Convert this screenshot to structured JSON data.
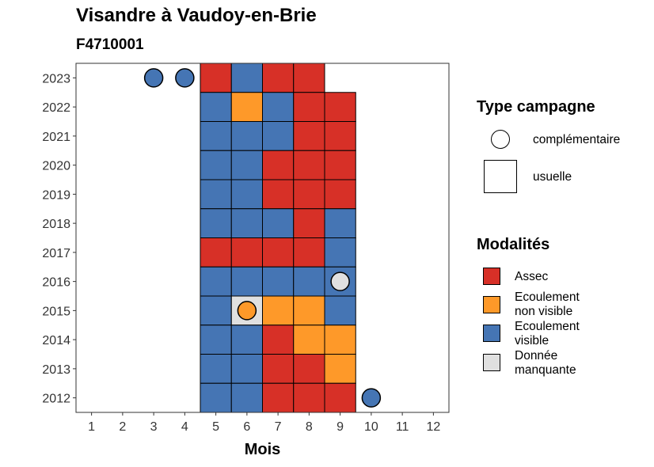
{
  "title": "Visandre à Vaudoy-en-Brie",
  "subtitle": "F4710001",
  "colors": {
    "Assec": "#d73027",
    "Ecoulement non visible": "#fe9929",
    "Ecoulement visible": "#4575b4",
    "Donnée manquante": "#e0e0e0"
  },
  "chart_data": {
    "type": "heatmap",
    "xlabel": "Mois",
    "ylabel": "",
    "x_ticks": [
      "1",
      "2",
      "3",
      "4",
      "5",
      "6",
      "7",
      "8",
      "9",
      "10",
      "11",
      "12"
    ],
    "y_ticks": [
      "2012",
      "2013",
      "2014",
      "2015",
      "2016",
      "2017",
      "2018",
      "2019",
      "2020",
      "2021",
      "2022",
      "2023"
    ],
    "xlim": [
      0.5,
      12.5
    ],
    "ylim": [
      2011.5,
      2023.5
    ],
    "usuelle": [
      {
        "year": 2023,
        "month": 5,
        "value": "Assec"
      },
      {
        "year": 2023,
        "month": 6,
        "value": "Ecoulement visible"
      },
      {
        "year": 2023,
        "month": 7,
        "value": "Assec"
      },
      {
        "year": 2023,
        "month": 8,
        "value": "Assec"
      },
      {
        "year": 2022,
        "month": 5,
        "value": "Ecoulement visible"
      },
      {
        "year": 2022,
        "month": 6,
        "value": "Ecoulement non visible"
      },
      {
        "year": 2022,
        "month": 7,
        "value": "Ecoulement visible"
      },
      {
        "year": 2022,
        "month": 8,
        "value": "Assec"
      },
      {
        "year": 2022,
        "month": 9,
        "value": "Assec"
      },
      {
        "year": 2021,
        "month": 5,
        "value": "Ecoulement visible"
      },
      {
        "year": 2021,
        "month": 6,
        "value": "Ecoulement visible"
      },
      {
        "year": 2021,
        "month": 7,
        "value": "Ecoulement visible"
      },
      {
        "year": 2021,
        "month": 8,
        "value": "Assec"
      },
      {
        "year": 2021,
        "month": 9,
        "value": "Assec"
      },
      {
        "year": 2020,
        "month": 5,
        "value": "Ecoulement visible"
      },
      {
        "year": 2020,
        "month": 6,
        "value": "Ecoulement visible"
      },
      {
        "year": 2020,
        "month": 7,
        "value": "Assec"
      },
      {
        "year": 2020,
        "month": 8,
        "value": "Assec"
      },
      {
        "year": 2020,
        "month": 9,
        "value": "Assec"
      },
      {
        "year": 2019,
        "month": 5,
        "value": "Ecoulement visible"
      },
      {
        "year": 2019,
        "month": 6,
        "value": "Ecoulement visible"
      },
      {
        "year": 2019,
        "month": 7,
        "value": "Assec"
      },
      {
        "year": 2019,
        "month": 8,
        "value": "Assec"
      },
      {
        "year": 2019,
        "month": 9,
        "value": "Assec"
      },
      {
        "year": 2018,
        "month": 5,
        "value": "Ecoulement visible"
      },
      {
        "year": 2018,
        "month": 6,
        "value": "Ecoulement visible"
      },
      {
        "year": 2018,
        "month": 7,
        "value": "Ecoulement visible"
      },
      {
        "year": 2018,
        "month": 8,
        "value": "Assec"
      },
      {
        "year": 2018,
        "month": 9,
        "value": "Ecoulement visible"
      },
      {
        "year": 2017,
        "month": 5,
        "value": "Assec"
      },
      {
        "year": 2017,
        "month": 6,
        "value": "Assec"
      },
      {
        "year": 2017,
        "month": 7,
        "value": "Assec"
      },
      {
        "year": 2017,
        "month": 8,
        "value": "Assec"
      },
      {
        "year": 2017,
        "month": 9,
        "value": "Ecoulement visible"
      },
      {
        "year": 2016,
        "month": 5,
        "value": "Ecoulement visible"
      },
      {
        "year": 2016,
        "month": 6,
        "value": "Ecoulement visible"
      },
      {
        "year": 2016,
        "month": 7,
        "value": "Ecoulement visible"
      },
      {
        "year": 2016,
        "month": 8,
        "value": "Ecoulement visible"
      },
      {
        "year": 2016,
        "month": 9,
        "value": "Ecoulement visible"
      },
      {
        "year": 2015,
        "month": 5,
        "value": "Ecoulement visible"
      },
      {
        "year": 2015,
        "month": 6,
        "value": "Donnée manquante"
      },
      {
        "year": 2015,
        "month": 7,
        "value": "Ecoulement non visible"
      },
      {
        "year": 2015,
        "month": 8,
        "value": "Ecoulement non visible"
      },
      {
        "year": 2015,
        "month": 9,
        "value": "Ecoulement visible"
      },
      {
        "year": 2014,
        "month": 5,
        "value": "Ecoulement visible"
      },
      {
        "year": 2014,
        "month": 6,
        "value": "Ecoulement visible"
      },
      {
        "year": 2014,
        "month": 7,
        "value": "Assec"
      },
      {
        "year": 2014,
        "month": 8,
        "value": "Ecoulement non visible"
      },
      {
        "year": 2014,
        "month": 9,
        "value": "Ecoulement non visible"
      },
      {
        "year": 2013,
        "month": 5,
        "value": "Ecoulement visible"
      },
      {
        "year": 2013,
        "month": 6,
        "value": "Ecoulement visible"
      },
      {
        "year": 2013,
        "month": 7,
        "value": "Assec"
      },
      {
        "year": 2013,
        "month": 8,
        "value": "Assec"
      },
      {
        "year": 2013,
        "month": 9,
        "value": "Ecoulement non visible"
      },
      {
        "year": 2012,
        "month": 5,
        "value": "Ecoulement visible"
      },
      {
        "year": 2012,
        "month": 6,
        "value": "Ecoulement visible"
      },
      {
        "year": 2012,
        "month": 7,
        "value": "Assec"
      },
      {
        "year": 2012,
        "month": 8,
        "value": "Assec"
      },
      {
        "year": 2012,
        "month": 9,
        "value": "Assec"
      }
    ],
    "complementaire": [
      {
        "year": 2023,
        "month": 3,
        "value": "Ecoulement visible"
      },
      {
        "year": 2023,
        "month": 4,
        "value": "Ecoulement visible"
      },
      {
        "year": 2016,
        "month": 9,
        "value": "Donnée manquante"
      },
      {
        "year": 2015,
        "month": 6,
        "value": "Ecoulement non visible"
      },
      {
        "year": 2012,
        "month": 10,
        "value": "Ecoulement visible"
      }
    ]
  },
  "legend": {
    "type_campagne": {
      "title": "Type campagne",
      "items": [
        {
          "label": "complémentaire",
          "shape": "circle"
        },
        {
          "label": "usuelle",
          "shape": "square"
        }
      ]
    },
    "modalites": {
      "title": "Modalités",
      "items": [
        {
          "label": "Assec",
          "key": "Assec"
        },
        {
          "label": "Ecoulement\nnon visible",
          "key": "Ecoulement non visible"
        },
        {
          "label": "Ecoulement\nvisible",
          "key": "Ecoulement visible"
        },
        {
          "label": "Donnée\nmanquante",
          "key": "Donnée manquante"
        }
      ]
    }
  }
}
